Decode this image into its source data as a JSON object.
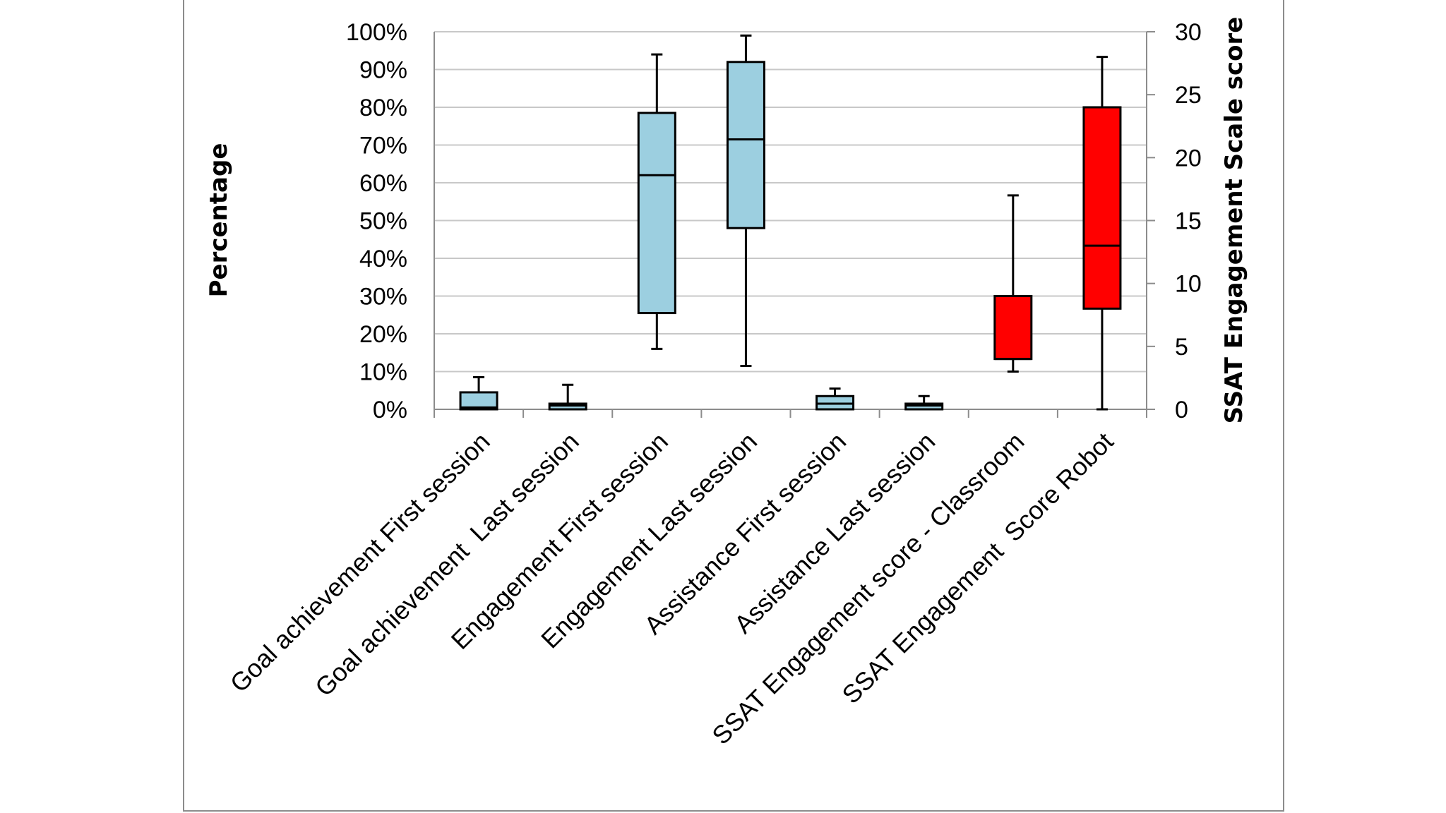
{
  "chart_data": {
    "type": "box",
    "ylabel_left": "Percentage",
    "ylabel_right": "SSAT Engagement Scale score",
    "left_axis": {
      "range": [
        0,
        100
      ],
      "step": 10,
      "ticks": [
        "0%",
        "10%",
        "20%",
        "30%",
        "40%",
        "50%",
        "60%",
        "70%",
        "80%",
        "90%",
        "100%"
      ]
    },
    "right_axis": {
      "range": [
        0,
        30
      ],
      "step": 5,
      "ticks": [
        "0",
        "5",
        "10",
        "15",
        "20",
        "25",
        "30"
      ]
    },
    "grid": true,
    "categories": [
      "Goal achievement First session",
      "Goal achievement  Last session",
      "Engagement First session",
      "Engagement Last session",
      "Assistance First session",
      "Assistance Last session",
      "SSAT Engagement score - Classroom",
      "SSAT Engagement  Score Robot"
    ],
    "boxes": [
      {
        "axis": "left",
        "min": 0,
        "q1": 0,
        "median": 0.5,
        "q3": 4.5,
        "max": 8.5,
        "color": "#9ccfe0"
      },
      {
        "axis": "left",
        "min": 0,
        "q1": 0,
        "median": 1,
        "q3": 1.5,
        "max": 6.5,
        "color": "#9ccfe0"
      },
      {
        "axis": "left",
        "min": 16,
        "q1": 25.5,
        "median": 62,
        "q3": 78.5,
        "max": 94,
        "color": "#9ccfe0"
      },
      {
        "axis": "left",
        "min": 11.5,
        "q1": 48,
        "median": 71.5,
        "q3": 92,
        "max": 99,
        "color": "#9ccfe0"
      },
      {
        "axis": "left",
        "min": 0,
        "q1": 0,
        "median": 1.5,
        "q3": 3.5,
        "max": 5.5,
        "color": "#9ccfe0"
      },
      {
        "axis": "left",
        "min": 0,
        "q1": 0,
        "median": 1,
        "q3": 1.5,
        "max": 3.5,
        "color": "#9ccfe0"
      },
      {
        "axis": "right",
        "min": 3,
        "q1": 4,
        "median": 4,
        "q3": 9,
        "max": 17,
        "color": "#ff0000"
      },
      {
        "axis": "right",
        "min": 0,
        "q1": 8,
        "median": 13,
        "q3": 24,
        "max": 28,
        "color": "#ff0000"
      }
    ]
  }
}
